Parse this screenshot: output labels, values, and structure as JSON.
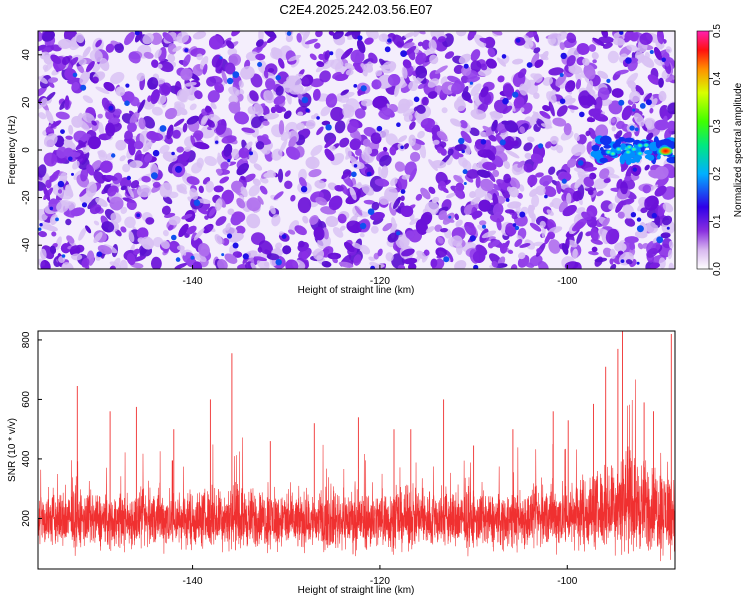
{
  "title": "C2E4.2025.242.03.56.E07",
  "chart_data": [
    {
      "type": "heatmap",
      "xlabel": "Height of straight line (km)",
      "ylabel": "Frequency (Hz)",
      "xlim": [
        -156.5,
        -88.5
      ],
      "ylim": [
        -50,
        50
      ],
      "x_ticks": [
        {
          "value": -140,
          "label": "-140"
        },
        {
          "value": -120,
          "label": "-120"
        },
        {
          "value": -100,
          "label": "-100"
        }
      ],
      "y_ticks": [
        {
          "value": 40,
          "label": "40"
        },
        {
          "value": 20,
          "label": "20"
        },
        {
          "value": 0,
          "label": "0"
        },
        {
          "value": -20,
          "label": "-20"
        },
        {
          "value": -40,
          "label": "-40"
        }
      ],
      "colorbar": {
        "label": "Normalized spectral amplitude",
        "range": [
          0.0,
          0.5
        ],
        "ticks": [
          {
            "value": 0.0,
            "label": "0.0"
          },
          {
            "value": 0.1,
            "label": "0.1"
          },
          {
            "value": 0.2,
            "label": "0.2"
          },
          {
            "value": 0.3,
            "label": "0.3"
          },
          {
            "value": 0.4,
            "label": "0.4"
          },
          {
            "value": 0.5,
            "label": "0.5"
          }
        ]
      },
      "features": [
        {
          "x_range": [
            -97,
            -88.5
          ],
          "frequency": 0,
          "peak_amplitude": 0.48,
          "x_peak": -89.5
        }
      ]
    },
    {
      "type": "line",
      "xlabel": "Height of straight line (km)",
      "ylabel": "SNR (10 * v/v)",
      "xlim": [
        -156.5,
        -88.5
      ],
      "ylim": [
        30,
        830
      ],
      "x_ticks": [
        {
          "value": -140,
          "label": "-140"
        },
        {
          "value": -120,
          "label": "-120"
        },
        {
          "value": -100,
          "label": "-100"
        }
      ],
      "y_ticks": [
        {
          "value": 800,
          "label": "800"
        },
        {
          "value": 600,
          "label": "600"
        },
        {
          "value": 400,
          "label": "400"
        },
        {
          "value": 200,
          "label": "200"
        }
      ],
      "series_color": "#f03030",
      "envelope": {
        "x": [
          -156,
          -152,
          -148,
          -144,
          -140,
          -136,
          -132,
          -128,
          -124,
          -120,
          -116,
          -112,
          -108,
          -104,
          -100,
          -96,
          -94,
          -92,
          -89
        ],
        "baseline": [
          195,
          195,
          190,
          200,
          195,
          205,
          195,
          190,
          195,
          195,
          200,
          195,
          190,
          200,
          210,
          230,
          260,
          240,
          220
        ],
        "spread": [
          170,
          175,
          165,
          180,
          170,
          190,
          175,
          170,
          175,
          180,
          180,
          175,
          170,
          180,
          200,
          240,
          300,
          280,
          260
        ]
      },
      "spikes": [
        {
          "x": -152.3,
          "y": 645
        },
        {
          "x": -148.8,
          "y": 560
        },
        {
          "x": -146.0,
          "y": 575
        },
        {
          "x": -142.0,
          "y": 500
        },
        {
          "x": -138.1,
          "y": 600
        },
        {
          "x": -135.8,
          "y": 755
        },
        {
          "x": -131.7,
          "y": 460
        },
        {
          "x": -127.0,
          "y": 520
        },
        {
          "x": -122.3,
          "y": 540
        },
        {
          "x": -118.5,
          "y": 500
        },
        {
          "x": -116.7,
          "y": 500
        },
        {
          "x": -113.2,
          "y": 600
        },
        {
          "x": -110.0,
          "y": 445
        },
        {
          "x": -105.8,
          "y": 500
        },
        {
          "x": -101.5,
          "y": 560
        },
        {
          "x": -99.9,
          "y": 530
        },
        {
          "x": -97.2,
          "y": 585
        },
        {
          "x": -95.9,
          "y": 710
        },
        {
          "x": -94.6,
          "y": 770
        },
        {
          "x": -94.1,
          "y": 830
        },
        {
          "x": -91.8,
          "y": 590
        },
        {
          "x": -90.8,
          "y": 560
        },
        {
          "x": -88.9,
          "y": 820
        }
      ]
    }
  ]
}
